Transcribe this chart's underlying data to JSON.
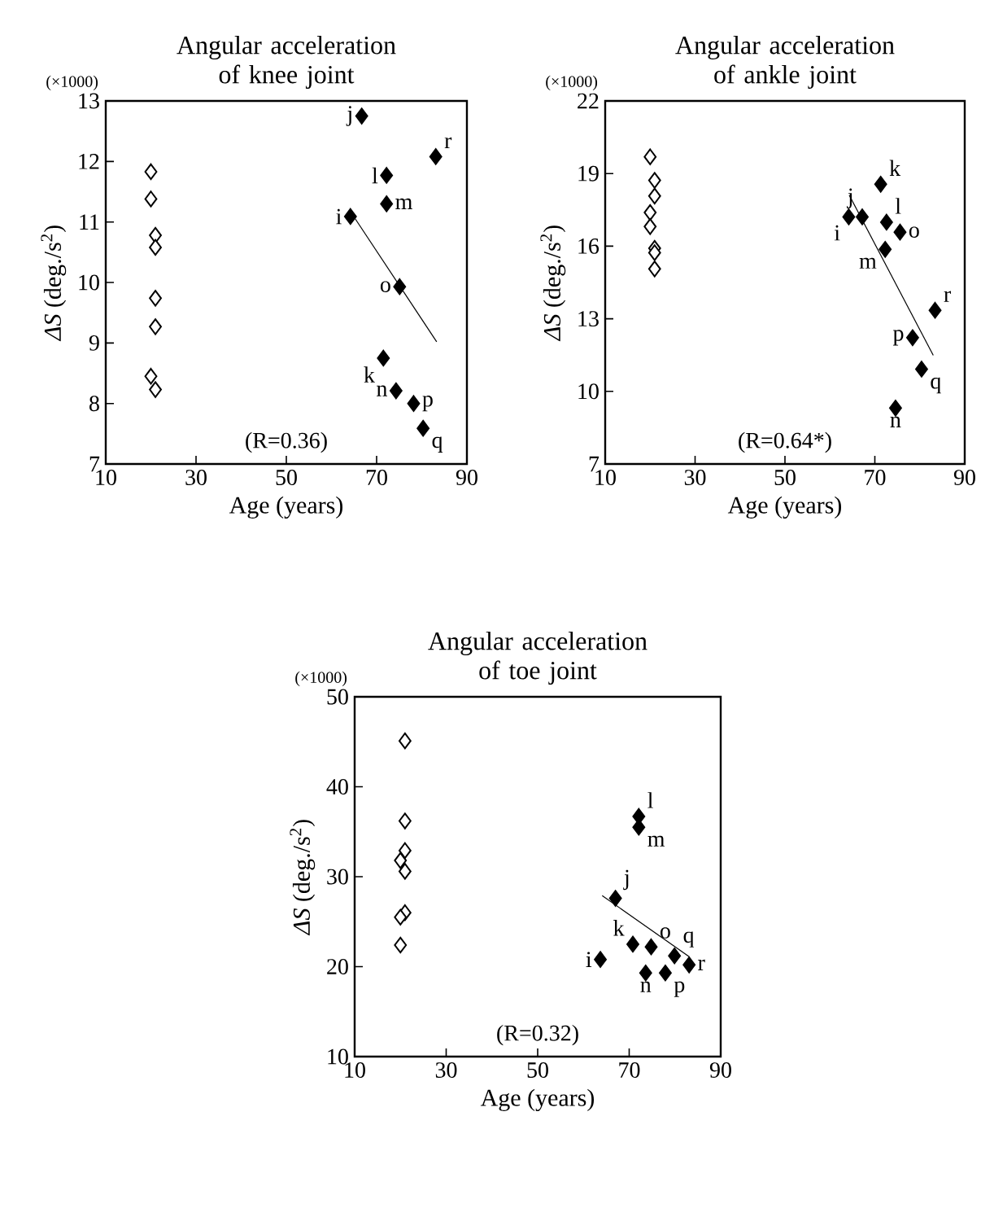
{
  "chart_data": [
    {
      "type": "scatter",
      "title": "Angular acceleration of knee joint",
      "xlabel": "Age (years)",
      "ylabel": "*ΔS* (deg./s$^{2}$)",
      "xlim": [
        10,
        90
      ],
      "ylim": [
        7,
        13
      ],
      "xticks": [
        10,
        30,
        50,
        70,
        90
      ],
      "yticks": [
        7,
        8,
        9,
        10,
        11,
        12,
        13
      ],
      "marker": "diamond",
      "series": [
        {
          "color": "#ffffff",
          "x": [
            20,
            20,
            21,
            21,
            21,
            21,
            20,
            21
          ],
          "values": [
            11.83,
            11.38,
            10.78,
            10.58,
            9.74,
            9.27,
            8.45,
            8.23
          ]
        },
        {
          "color": "#000000",
          "x": [
            64.2,
            66.7,
            71.5,
            72.2,
            72.2,
            74.3,
            75.1,
            78.2,
            80.3,
            83.1
          ],
          "values": [
            11.09,
            12.75,
            8.75,
            11.77,
            11.3,
            8.21,
            9.93,
            8.0,
            7.59,
            12.08
          ]
        },
        {
          "type": "line",
          "marker": "none",
          "line_style": "solid",
          "color": "#000000",
          "x": [
            65.2,
            83.3
          ],
          "values": [
            11.06,
            9.02
          ]
        }
      ],
      "annotations": [
        "(R=0.36)",
        "(×1000)",
        {
          "text": "i",
          "x": 64.2,
          "y": 11.09
        },
        {
          "text": "j",
          "x": 66.7,
          "y": 12.75
        },
        {
          "text": "k",
          "x": 71.5,
          "y": 8.75
        },
        {
          "text": "l",
          "x": 72.2,
          "y": 11.77
        },
        {
          "text": "m",
          "x": 72.2,
          "y": 11.3
        },
        {
          "text": "n",
          "x": 74.3,
          "y": 8.21
        },
        {
          "text": "o",
          "x": 75.1,
          "y": 9.93
        },
        {
          "text": "p",
          "x": 78.2,
          "y": 8.0
        },
        {
          "text": "q",
          "x": 80.3,
          "y": 7.59
        },
        {
          "text": "r",
          "x": 83.1,
          "y": 12.08
        }
      ]
    },
    {
      "type": "scatter",
      "title": "Angular acceleration of ankle joint",
      "xlabel": "Age (years)",
      "ylabel": "*ΔS* (deg./s$^{2}$)",
      "xlim": [
        10,
        90
      ],
      "ylim": [
        7,
        22
      ],
      "xticks": [
        10,
        30,
        50,
        70,
        90
      ],
      "yticks": [
        7,
        10,
        13,
        16,
        19,
        22
      ],
      "marker": "diamond",
      "series": [
        {
          "color": "#ffffff",
          "x": [
            20,
            21,
            21,
            20,
            20,
            21,
            21,
            21
          ],
          "values": [
            19.69,
            18.72,
            18.07,
            17.39,
            16.81,
            15.91,
            15.73,
            15.06
          ]
        },
        {
          "color": "#000000",
          "x": [
            64.2,
            67.2,
            71.3,
            72.6,
            72.3,
            74.6,
            75.6,
            78.4,
            80.4,
            83.4
          ],
          "values": [
            17.21,
            17.21,
            18.56,
            16.99,
            15.87,
            9.31,
            16.58,
            12.22,
            10.92,
            13.35
          ]
        },
        {
          "type": "line",
          "marker": "none",
          "line_style": "solid",
          "color": "#000000",
          "x": [
            64.3,
            83.0
          ],
          "values": [
            18.11,
            11.49
          ]
        }
      ],
      "annotations": [
        "(R=0.64*)",
        "(×1000)",
        {
          "text": "i",
          "x": 64.2,
          "y": 17.21
        },
        {
          "text": "j",
          "x": 67.2,
          "y": 17.21
        },
        {
          "text": "k",
          "x": 71.3,
          "y": 18.56
        },
        {
          "text": "l",
          "x": 72.6,
          "y": 16.99
        },
        {
          "text": "m",
          "x": 72.3,
          "y": 15.87
        },
        {
          "text": "n",
          "x": 74.6,
          "y": 9.31
        },
        {
          "text": "o",
          "x": 75.6,
          "y": 16.58
        },
        {
          "text": "p",
          "x": 78.4,
          "y": 12.22
        },
        {
          "text": "q",
          "x": 80.4,
          "y": 10.92
        },
        {
          "text": "r",
          "x": 83.4,
          "y": 13.35
        }
      ]
    },
    {
      "type": "scatter",
      "title": "Angular acceleration of toe joint",
      "xlabel": "Age (years)",
      "ylabel": "*ΔS* (deg./s$^{2}$)",
      "xlim": [
        10,
        90
      ],
      "ylim": [
        10,
        50
      ],
      "xticks": [
        10,
        30,
        50,
        70,
        90
      ],
      "yticks": [
        10,
        20,
        30,
        40,
        50
      ],
      "marker": "diamond",
      "series": [
        {
          "color": "#ffffff",
          "x": [
            21,
            21,
            21,
            20,
            21,
            21,
            20,
            20
          ],
          "values": [
            45.1,
            36.2,
            32.9,
            31.8,
            30.6,
            26.0,
            25.5,
            22.4
          ]
        },
        {
          "color": "#000000",
          "x": [
            63.7,
            67.0,
            70.8,
            72.1,
            72.1,
            73.6,
            74.8,
            77.9,
            79.9,
            83.1
          ],
          "values": [
            20.8,
            27.6,
            22.5,
            36.7,
            35.5,
            19.3,
            22.2,
            19.3,
            21.2,
            20.2
          ]
        },
        {
          "type": "line",
          "marker": "none",
          "line_style": "solid",
          "color": "#000000",
          "x": [
            64.1,
            83.1
          ],
          "values": [
            27.9,
            21.1
          ]
        }
      ],
      "annotations": [
        "(R=0.32)",
        "(×1000)",
        {
          "text": "i",
          "x": 63.7,
          "y": 20.8
        },
        {
          "text": "j",
          "x": 67.0,
          "y": 27.6
        },
        {
          "text": "k",
          "x": 70.8,
          "y": 22.5
        },
        {
          "text": "l",
          "x": 72.1,
          "y": 36.7
        },
        {
          "text": "m",
          "x": 72.1,
          "y": 35.5
        },
        {
          "text": "n",
          "x": 73.6,
          "y": 19.3
        },
        {
          "text": "o",
          "x": 74.8,
          "y": 22.2
        },
        {
          "text": "p",
          "x": 77.9,
          "y": 19.3
        },
        {
          "text": "q",
          "x": 79.9,
          "y": 21.2
        },
        {
          "text": "r",
          "x": 83.1,
          "y": 20.2
        }
      ]
    }
  ]
}
